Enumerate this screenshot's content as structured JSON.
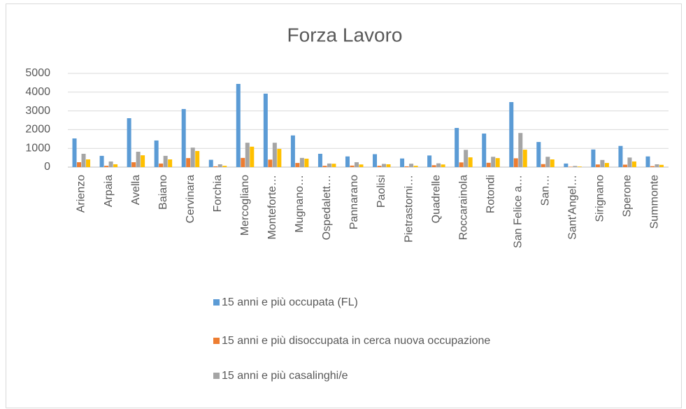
{
  "chart_data": {
    "type": "bar",
    "title": "Forza Lavoro",
    "categories": [
      "Arienzo",
      "Arpaia",
      "Avella",
      "Baiano",
      "Cervinara",
      "Forchia",
      "Mercogliano",
      "Monteforte…",
      "Mugnano…",
      "Ospedalett…",
      "Pannarano",
      "Paolisi",
      "Pietrastorni…",
      "Quadrelle",
      "Roccarainola",
      "Rotondi",
      "San Felice a…",
      "San…",
      "Sant'Angel…",
      "Sirignano",
      "Sperone",
      "Summonte"
    ],
    "series": [
      {
        "name": "15 anni e più occupata (FL)",
        "color": "#5b9bd5",
        "values": [
          1530,
          600,
          2610,
          1420,
          3100,
          390,
          4440,
          3920,
          1690,
          710,
          570,
          690,
          460,
          620,
          2090,
          1790,
          3470,
          1340,
          190,
          940,
          1130,
          570
        ]
      },
      {
        "name": "15 anni e più disoccupata in cerca nuova occupazione",
        "color": "#ed7d31",
        "values": [
          260,
          70,
          260,
          190,
          480,
          40,
          490,
          400,
          220,
          70,
          80,
          70,
          40,
          100,
          250,
          230,
          470,
          160,
          20,
          140,
          130,
          50
        ]
      },
      {
        "name": "15 anni e più casalinghi/e",
        "color": "#a5a5a5",
        "values": [
          710,
          300,
          820,
          600,
          1040,
          150,
          1300,
          1300,
          490,
          190,
          260,
          170,
          180,
          200,
          920,
          550,
          1820,
          550,
          60,
          380,
          510,
          150
        ]
      },
      {
        "color": "#ffc000",
        "values": [
          410,
          150,
          630,
          410,
          860,
          70,
          1090,
          970,
          450,
          180,
          140,
          150,
          70,
          140,
          520,
          480,
          930,
          410,
          30,
          220,
          300,
          120
        ]
      }
    ],
    "ylim": [
      0,
      5000
    ],
    "yticks": [
      0,
      1000,
      2000,
      3000,
      4000,
      5000
    ],
    "grid": true
  }
}
